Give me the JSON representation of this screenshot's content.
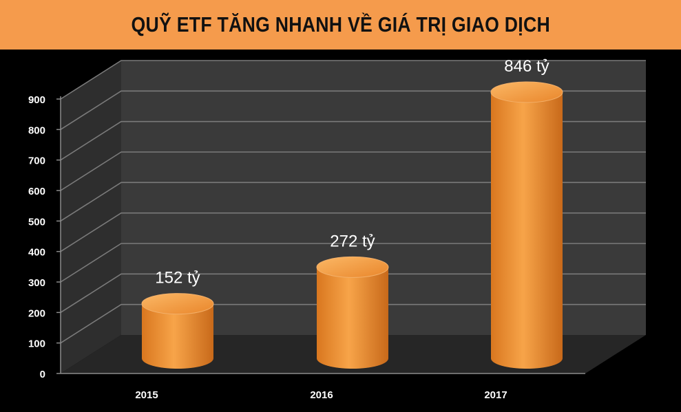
{
  "title": "QUỸ ETF TĂNG NHANH VỀ GIÁ TRỊ GIAO DỊCH",
  "colors": {
    "banner": "#f59b4c",
    "background": "#000000",
    "wall": "#3a3a3a",
    "floor": "#262626",
    "bar": "#ee8d2c",
    "bar_top": "#f6a94f"
  },
  "chart_data": {
    "type": "bar",
    "style": "3d-cylinder",
    "title": "QUỸ ETF TĂNG NHANH VỀ GIÁ TRỊ GIAO DỊCH",
    "categories": [
      "2015",
      "2016",
      "2017"
    ],
    "values": [
      152,
      272,
      846
    ],
    "data_labels": [
      "152 tỷ",
      "272 tỷ",
      "846 tỷ"
    ],
    "ylim": [
      0,
      900
    ],
    "yticks": [
      0,
      100,
      200,
      300,
      400,
      500,
      600,
      700,
      800,
      900
    ],
    "xlabel": "",
    "ylabel": "",
    "grid": true,
    "legend": "none"
  }
}
